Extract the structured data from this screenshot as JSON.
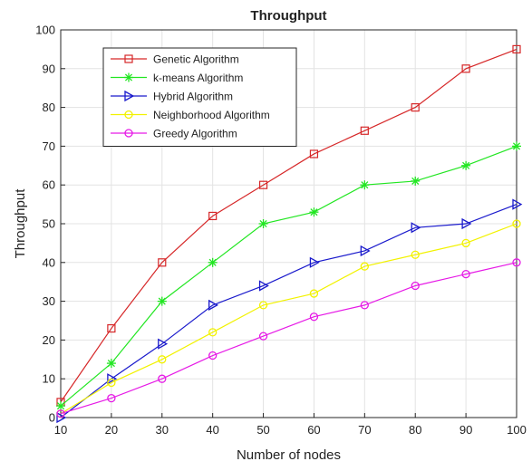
{
  "chart_data": {
    "type": "line",
    "title": "Throughput",
    "xlabel": "Number of nodes",
    "ylabel": "Throughput",
    "x": [
      10,
      20,
      30,
      40,
      50,
      60,
      70,
      80,
      90,
      100
    ],
    "xlim": [
      10,
      100
    ],
    "ylim": [
      0,
      100
    ],
    "xticks": [
      10,
      20,
      30,
      40,
      50,
      60,
      70,
      80,
      90,
      100
    ],
    "yticks": [
      0,
      10,
      20,
      30,
      40,
      50,
      60,
      70,
      80,
      90,
      100
    ],
    "grid": true,
    "legend_position": "top-left",
    "series": [
      {
        "name": "Genetic Algorithm",
        "color": "#d62728",
        "marker": "square",
        "values": [
          4,
          23,
          40,
          52,
          60,
          68,
          74,
          80,
          90,
          95
        ]
      },
      {
        "name": "k-means Algorithm",
        "color": "#22e622",
        "marker": "asterisk",
        "values": [
          3,
          14,
          30,
          40,
          50,
          53,
          60,
          61,
          65,
          70
        ]
      },
      {
        "name": "Hybrid Algorithm",
        "color": "#1a1acc",
        "marker": "triangle-right",
        "values": [
          0,
          10,
          19,
          29,
          34,
          40,
          43,
          49,
          50,
          55
        ]
      },
      {
        "name": "Neighborhood Algorithm",
        "color": "#f2f200",
        "marker": "circle",
        "values": [
          1,
          9,
          15,
          22,
          29,
          32,
          39,
          42,
          45,
          50
        ]
      },
      {
        "name": "Greedy Algorithm",
        "color": "#e61ae6",
        "marker": "circle",
        "values": [
          1,
          5,
          10,
          16,
          21,
          26,
          29,
          34,
          37,
          40
        ]
      }
    ]
  }
}
